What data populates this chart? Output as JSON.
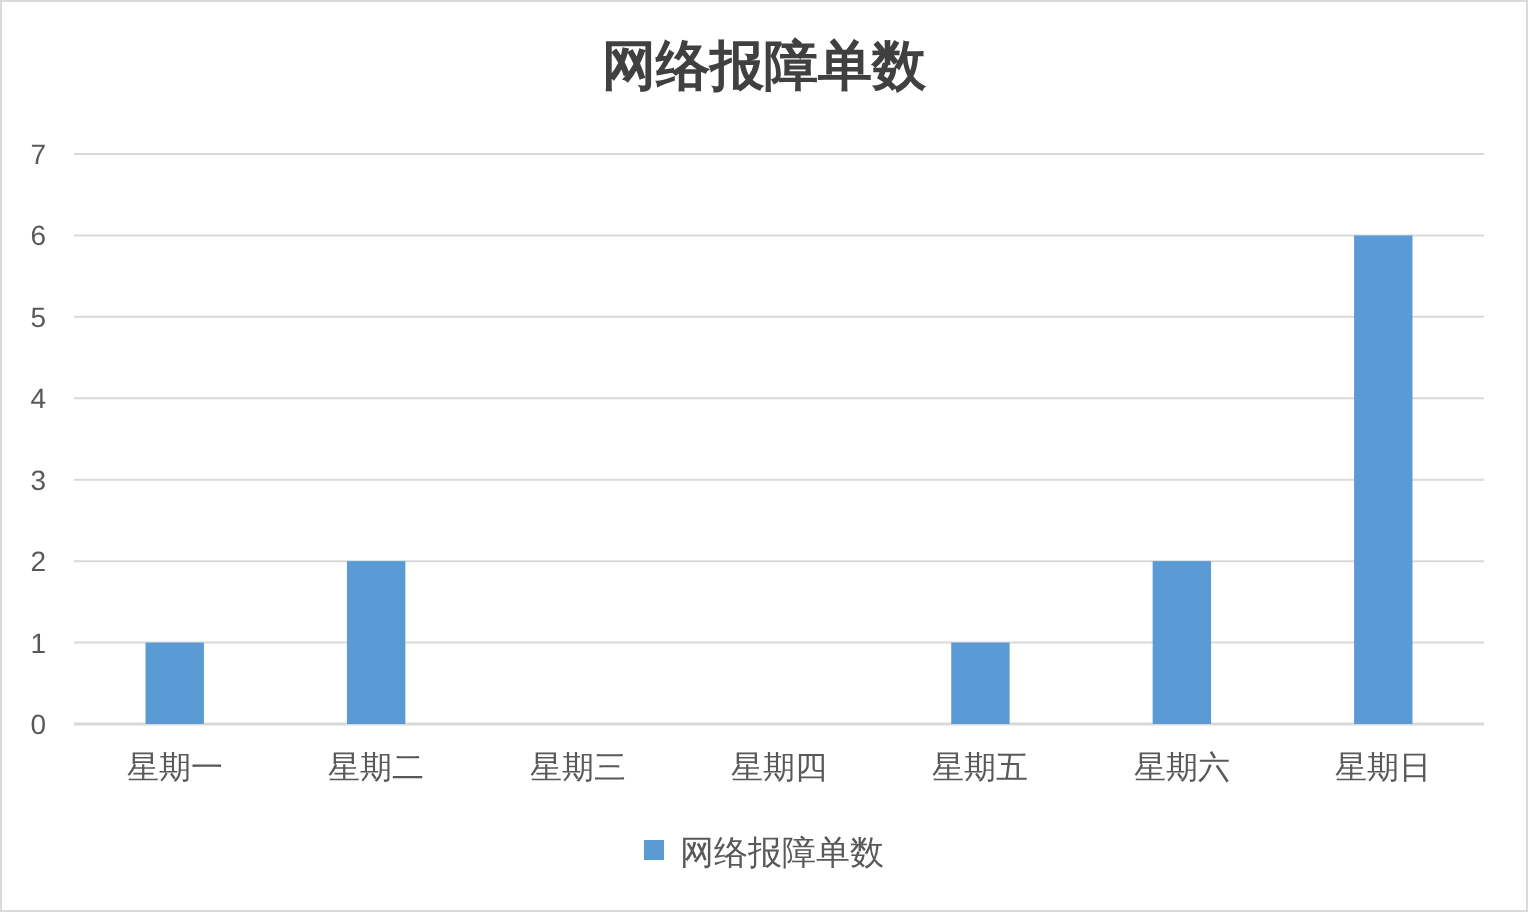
{
  "chart_data": {
    "type": "bar",
    "title": "网络报障单数",
    "categories": [
      "星期一",
      "星期二",
      "星期三",
      "星期四",
      "星期五",
      "星期六",
      "星期日"
    ],
    "series": [
      {
        "name": "网络报障单数",
        "color": "#5b9bd5",
        "values": [
          1,
          2,
          0,
          0,
          1,
          2,
          6
        ]
      }
    ],
    "ylim": [
      0,
      7
    ],
    "yticks": [
      0,
      1,
      2,
      3,
      4,
      5,
      6,
      7
    ],
    "grid": "y",
    "legend": "bottom"
  }
}
